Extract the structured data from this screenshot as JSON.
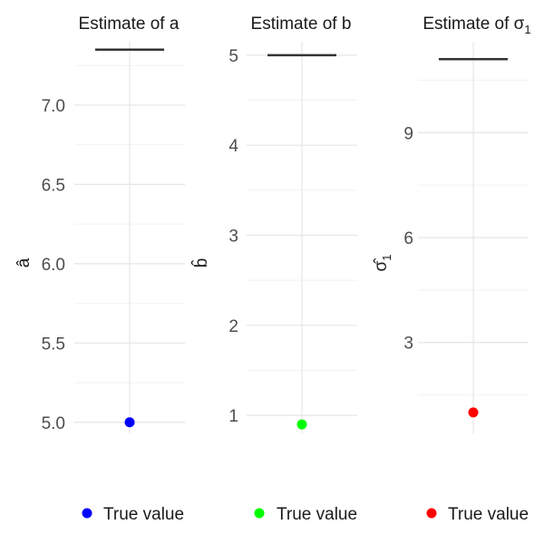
{
  "chart_data": [
    {
      "type": "scatter",
      "title": "Estimate of a",
      "ylabel": "â",
      "ylim": [
        4.93,
        7.4
      ],
      "major_ticks": [
        5.0,
        5.5,
        6.0,
        6.5,
        7.0
      ],
      "tick_labels": [
        "5.0",
        "5.5",
        "6.0",
        "6.5",
        "7.0"
      ],
      "minor_ticks": [
        5.25,
        5.75,
        6.25,
        6.75,
        7.25
      ],
      "estimate": 7.35,
      "true_value": 5.0,
      "legend_label": "True value",
      "color": "#0000FF",
      "grid": true,
      "legend_position": "bottom"
    },
    {
      "type": "scatter",
      "title": "Estimate of b",
      "ylabel": "b̂",
      "ylim": [
        0.8,
        5.15
      ],
      "major_ticks": [
        1,
        2,
        3,
        4,
        5
      ],
      "tick_labels": [
        "1",
        "2",
        "3",
        "4",
        "5"
      ],
      "minor_ticks": [
        1.5,
        2.5,
        3.5,
        4.5
      ],
      "estimate": 5.0,
      "true_value": 0.9,
      "legend_label": "True value",
      "color": "#00FF00",
      "grid": true,
      "legend_position": "bottom"
    },
    {
      "type": "scatter",
      "title": "Estimate of σ",
      "title_sub": "1",
      "ylabel": "σ̂",
      "ylabel_sub": "1",
      "ylim": [
        0.4,
        11.6
      ],
      "major_ticks": [
        3,
        6,
        9
      ],
      "tick_labels": [
        "3",
        "6",
        "9"
      ],
      "minor_ticks": [
        1.5,
        4.5,
        7.5,
        10.5
      ],
      "estimate": 11.1,
      "true_value": 1.0,
      "legend_label": "True value",
      "color": "#FF0000",
      "grid": true,
      "legend_position": "bottom"
    }
  ]
}
